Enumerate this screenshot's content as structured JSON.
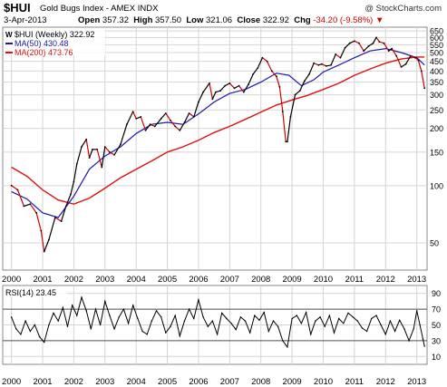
{
  "header": {
    "symbol": "$HUI",
    "name": "Gold Bugs Index - AMEX  INDX",
    "brand": "@ StockCharts.com",
    "date": "3-Apr-2013",
    "open_label": "Open",
    "open": "357.32",
    "high_label": "High",
    "high": "357.50",
    "low_label": "Low",
    "low": "321.06",
    "close_label": "Close",
    "close": "322.92",
    "chg_label": "Chg",
    "chg": "-34.20 (-9.58%)",
    "chg_arrow": "▼"
  },
  "legend": {
    "price": "$HUI (Weekly) 322.92",
    "ma50": "MA(50) 430.48",
    "ma200": "MA(200) 473.76"
  },
  "rsi_label": "RSI(14) 23.45",
  "colors": {
    "price": "#000000",
    "down": "#cc0000",
    "ma50": "#1a1aa8",
    "ma200": "#dd1111",
    "grid": "#d4d4d4",
    "rsi_line": "#000000"
  },
  "chart_data": [
    {
      "type": "line",
      "scale": "log",
      "title": "$HUI (Weekly) 322.92",
      "x_ticks": [
        "2000",
        "2001",
        "2002",
        "2003",
        "2004",
        "2005",
        "2006",
        "2007",
        "2008",
        "2009",
        "2010",
        "2011",
        "2012",
        "2013"
      ],
      "y_ticks": [
        50,
        100,
        150,
        200,
        250,
        300,
        350,
        400,
        450,
        500,
        550,
        600,
        650
      ],
      "ylim": [
        36,
        680
      ],
      "grid": true,
      "legend_position": "top-left",
      "series": [
        {
          "name": "$HUI (Weekly) 322.92",
          "x": [
            2000.0,
            2000.2,
            2000.4,
            2000.6,
            2000.8,
            2000.95,
            2001.05,
            2001.2,
            2001.4,
            2001.6,
            2001.75,
            2001.9,
            2002.0,
            2002.1,
            2002.25,
            2002.4,
            2002.5,
            2002.6,
            2002.75,
            2002.9,
            2003.0,
            2003.15,
            2003.3,
            2003.5,
            2003.7,
            2003.9,
            2004.0,
            2004.15,
            2004.3,
            2004.45,
            2004.6,
            2004.8,
            2004.95,
            2005.1,
            2005.25,
            2005.4,
            2005.55,
            2005.7,
            2005.85,
            2006.0,
            2006.15,
            2006.35,
            2006.45,
            2006.55,
            2006.7,
            2006.85,
            2007.0,
            2007.15,
            2007.3,
            2007.45,
            2007.6,
            2007.75,
            2007.9,
            2008.05,
            2008.2,
            2008.35,
            2008.5,
            2008.6,
            2008.7,
            2008.8,
            2008.85,
            2008.95,
            2009.1,
            2009.25,
            2009.4,
            2009.55,
            2009.7,
            2009.85,
            2009.95,
            2010.1,
            2010.25,
            2010.4,
            2010.55,
            2010.7,
            2010.85,
            2011.0,
            2011.15,
            2011.3,
            2011.45,
            2011.6,
            2011.7,
            2011.8,
            2011.95,
            2012.1,
            2012.2,
            2012.35,
            2012.5,
            2012.65,
            2012.8,
            2012.95,
            2013.05,
            2013.15,
            2013.25
          ],
          "y": [
            100,
            95,
            78,
            80,
            72,
            58,
            45,
            52,
            68,
            65,
            78,
            90,
            105,
            130,
            160,
            175,
            140,
            155,
            155,
            125,
            160,
            150,
            145,
            165,
            210,
            245,
            225,
            230,
            195,
            210,
            205,
            225,
            240,
            220,
            205,
            195,
            215,
            240,
            230,
            275,
            310,
            345,
            285,
            310,
            315,
            335,
            345,
            325,
            335,
            310,
            340,
            385,
            415,
            470,
            450,
            400,
            375,
            330,
            245,
            170,
            170,
            230,
            300,
            315,
            355,
            385,
            440,
            430,
            435,
            425,
            430,
            490,
            470,
            530,
            560,
            575,
            560,
            510,
            540,
            560,
            600,
            570,
            560,
            510,
            525,
            480,
            420,
            435,
            480,
            470,
            455,
            400,
            325
          ]
        },
        {
          "name": "MA(50) 430.48",
          "x": [
            2000.0,
            2000.5,
            2001.0,
            2001.5,
            2002.0,
            2002.5,
            2003.0,
            2003.5,
            2004.0,
            2004.5,
            2005.0,
            2005.5,
            2006.0,
            2006.5,
            2007.0,
            2007.5,
            2008.0,
            2008.5,
            2008.9,
            2009.3,
            2009.7,
            2010.0,
            2010.5,
            2011.0,
            2011.5,
            2012.0,
            2012.5,
            2013.0,
            2013.25
          ],
          "y": [
            93,
            85,
            72,
            68,
            88,
            122,
            143,
            160,
            188,
            210,
            215,
            210,
            238,
            275,
            305,
            320,
            350,
            390,
            380,
            335,
            360,
            395,
            430,
            470,
            510,
            525,
            500,
            470,
            430
          ]
        },
        {
          "name": "MA(200) 473.76",
          "x": [
            2000.0,
            2000.5,
            2001.0,
            2001.5,
            2002.0,
            2002.5,
            2003.0,
            2003.5,
            2004.0,
            2004.5,
            2005.0,
            2005.5,
            2006.0,
            2006.5,
            2007.0,
            2007.5,
            2008.0,
            2008.5,
            2009.0,
            2009.5,
            2010.0,
            2010.5,
            2011.0,
            2011.5,
            2012.0,
            2012.5,
            2013.0,
            2013.25
          ],
          "y": [
            125,
            112,
            95,
            84,
            80,
            86,
            97,
            110,
            122,
            135,
            150,
            160,
            173,
            190,
            205,
            223,
            243,
            265,
            282,
            298,
            320,
            345,
            380,
            410,
            440,
            463,
            474,
            474
          ]
        }
      ]
    },
    {
      "type": "line",
      "title": "RSI(14) 23.45",
      "x_ticks": [
        "2000",
        "2001",
        "2002",
        "2003",
        "2004",
        "2005",
        "2006",
        "2007",
        "2008",
        "2009",
        "2010",
        "2011",
        "2012",
        "2013"
      ],
      "y_ticks": [
        10,
        30,
        50,
        70,
        90
      ],
      "ylim": [
        0,
        100
      ],
      "reference_lines": [
        30,
        70
      ],
      "series": [
        {
          "name": "RSI(14) 23.45",
          "x": [
            2000.0,
            2000.15,
            2000.3,
            2000.45,
            2000.6,
            2000.75,
            2000.9,
            2001.05,
            2001.2,
            2001.35,
            2001.5,
            2001.65,
            2001.8,
            2001.95,
            2002.1,
            2002.25,
            2002.4,
            2002.55,
            2002.7,
            2002.85,
            2003.0,
            2003.15,
            2003.3,
            2003.45,
            2003.6,
            2003.75,
            2003.9,
            2004.05,
            2004.2,
            2004.35,
            2004.5,
            2004.65,
            2004.8,
            2004.95,
            2005.1,
            2005.25,
            2005.4,
            2005.55,
            2005.7,
            2005.85,
            2006.0,
            2006.15,
            2006.3,
            2006.45,
            2006.6,
            2006.75,
            2006.9,
            2007.05,
            2007.2,
            2007.35,
            2007.5,
            2007.65,
            2007.8,
            2007.95,
            2008.1,
            2008.25,
            2008.4,
            2008.55,
            2008.7,
            2008.85,
            2009.0,
            2009.15,
            2009.3,
            2009.45,
            2009.6,
            2009.75,
            2009.9,
            2010.05,
            2010.2,
            2010.35,
            2010.5,
            2010.65,
            2010.8,
            2010.95,
            2011.1,
            2011.25,
            2011.4,
            2011.55,
            2011.7,
            2011.85,
            2012.0,
            2012.15,
            2012.3,
            2012.45,
            2012.6,
            2012.75,
            2012.9,
            2013.0,
            2013.1,
            2013.2,
            2013.25
          ],
          "y": [
            60,
            45,
            38,
            55,
            42,
            50,
            35,
            28,
            50,
            65,
            55,
            72,
            48,
            75,
            62,
            85,
            68,
            45,
            70,
            50,
            80,
            62,
            45,
            60,
            70,
            52,
            75,
            58,
            42,
            38,
            55,
            68,
            60,
            40,
            48,
            62,
            36,
            55,
            70,
            58,
            82,
            60,
            48,
            55,
            38,
            65,
            58,
            52,
            44,
            60,
            55,
            40,
            62,
            56,
            66,
            42,
            55,
            48,
            30,
            22,
            58,
            62,
            52,
            66,
            38,
            55,
            60,
            48,
            62,
            40,
            58,
            52,
            65,
            60,
            55,
            46,
            42,
            58,
            62,
            50,
            38,
            55,
            42,
            56,
            45,
            30,
            45,
            68,
            50,
            32,
            23
          ]
        }
      ]
    }
  ]
}
